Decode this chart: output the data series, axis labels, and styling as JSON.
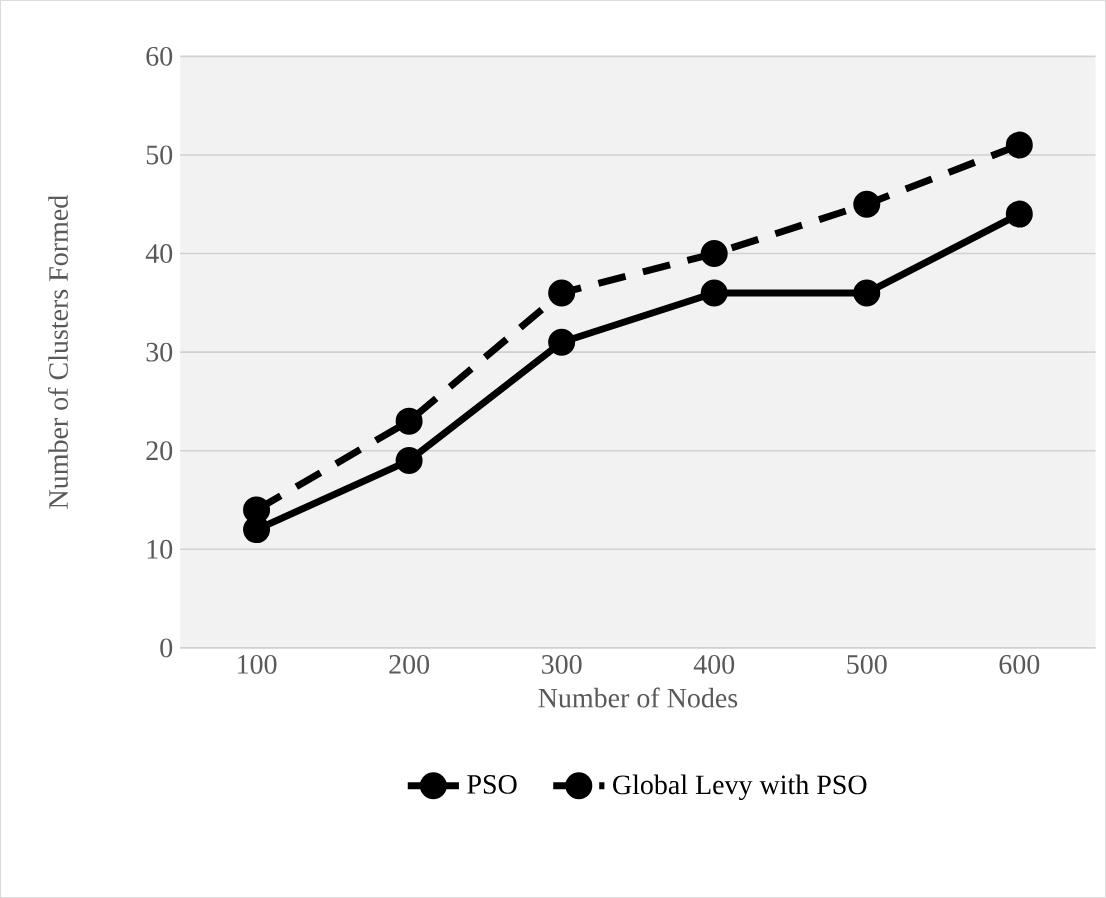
{
  "chart_data": {
    "type": "line",
    "xlabel": "Number of Nodes",
    "ylabel": "Number of Clusters Formed",
    "categories": [
      "100",
      "200",
      "300",
      "400",
      "500",
      "600"
    ],
    "series": [
      {
        "name": "PSO",
        "color": "#000000",
        "line_style": "solid",
        "values": [
          12,
          19,
          31,
          36,
          36,
          44
        ]
      },
      {
        "name": "Global Levy with PSO",
        "color": "#000000",
        "line_style": "dashed",
        "values": [
          14,
          23,
          36,
          40,
          45,
          51
        ]
      }
    ],
    "ylim": [
      0,
      60
    ],
    "yticks": [
      0,
      10,
      20,
      30,
      40,
      50,
      60
    ],
    "grid": "y",
    "legend": "bottom",
    "marker": "circle"
  }
}
